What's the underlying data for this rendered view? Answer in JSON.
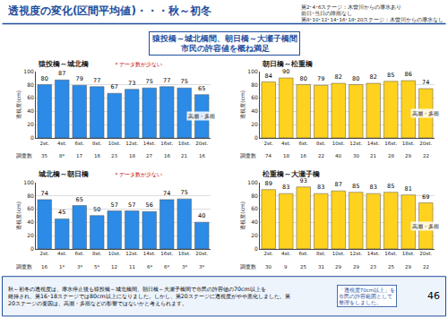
{
  "title": "透視度の変化(区間平均値)・・・秋～初冬",
  "notes": [
    "第2･4･6ステージ：木曽川からの導水あり",
    "前日･当日の降雨なし",
    "第8･10･12･14･16･18･20ステージ：木曽川からの導水なし"
  ],
  "subtitle": [
    "猿投橋～城北橋間、朝日橋～大瀬子橋間",
    "市民の許容値を概ね満足"
  ],
  "count_label": "調査数",
  "footer": [
    "秋～初冬の透視度は、導水停止後も猿投橋～城北橋間、朝日橋～大瀬子橋間で市民の許容値の70cm以上を",
    "維持され、第16･18ステージでは80cm以上になりました。しかし、第20ステージに透視度がやや悪化しました。第",
    "20ステージの要因は、高潮・多雨などの影響ではないかと考えられます。"
  ],
  "callout": [
    "「透視度70cm以上」を",
    "市民の許容範囲として",
    "整理をしました。"
  ],
  "page": "46",
  "chart_data": [
    {
      "type": "bar",
      "title": "猿投橋～城北橋",
      "note": "＊データ数が少ない",
      "y_label": "透視度(cm)",
      "categories": [
        "2st.",
        "4st.",
        "6st.",
        "8st.",
        "10st.",
        "12st.",
        "14st.",
        "16st.",
        "18st.",
        "20st."
      ],
      "values": [
        80,
        87,
        79,
        77,
        67,
        73,
        75,
        77,
        75,
        65
      ],
      "counts": [
        "35",
        "8*",
        "17",
        "16",
        "23",
        "18",
        "27",
        "16",
        "21",
        "16"
      ],
      "annotations": [
        {
          "text": "高潮・多雨",
          "category": "20st."
        }
      ],
      "color": "#2b8be6",
      "ylim": [
        0,
        100
      ],
      "yticks": [
        0,
        20,
        40,
        60,
        80,
        100
      ],
      "grid": true,
      "data_labels": true
    },
    {
      "type": "bar",
      "title": "朝日橋～松重橋",
      "y_label": "透視度(cm)",
      "categories": [
        "2st.",
        "4st.",
        "6st.",
        "8st.",
        "10st.",
        "12st.",
        "14st.",
        "16st.",
        "18st.",
        "20st."
      ],
      "values": [
        84,
        90,
        80,
        79,
        82,
        80,
        82,
        85,
        86,
        74
      ],
      "counts": [
        "74",
        "18",
        "16",
        "22",
        "40",
        "30",
        "21",
        "28",
        "29",
        "22"
      ],
      "annotations": [
        {
          "text": "高潮・多雨",
          "category": "20st."
        }
      ],
      "color": "#ffd21f",
      "ylim": [
        0,
        100
      ],
      "yticks": [
        0,
        20,
        40,
        60,
        80,
        100
      ],
      "grid": true,
      "data_labels": true
    },
    {
      "type": "bar",
      "title": "城北橋～朝日橋",
      "note": "＊データ数が少ない",
      "y_label": "透視度(cm)",
      "categories": [
        "2st.",
        "4st.",
        "6st.",
        "8st.",
        "10st.",
        "12st.",
        "14st.",
        "16st.",
        "18st.",
        "20st."
      ],
      "values": [
        74,
        45,
        65,
        50,
        57,
        57,
        56,
        74,
        75,
        40
      ],
      "counts": [
        "16",
        "1*",
        "3*",
        "5*",
        "12",
        "11",
        "6*",
        "6*",
        "3*",
        "3*"
      ],
      "color": "#2b8be6",
      "ylim": [
        0,
        100
      ],
      "yticks": [
        0,
        20,
        40,
        60,
        80,
        100
      ],
      "grid": true,
      "data_labels": true
    },
    {
      "type": "bar",
      "title": "松重橋～大瀬子橋",
      "y_label": "透視度(cm)",
      "categories": [
        "2st.",
        "4st.",
        "6st.",
        "8st.",
        "10st.",
        "12st.",
        "14st.",
        "16st.",
        "18st.",
        "20st."
      ],
      "values": [
        89,
        83,
        93,
        83,
        87,
        85,
        83,
        85,
        81,
        69
      ],
      "counts": [
        "30",
        "9",
        "25",
        "31",
        "29",
        "29",
        "23",
        "25",
        "29",
        "22"
      ],
      "annotations": [
        {
          "text": "高潮・多雨",
          "category": "20st."
        }
      ],
      "color": "#ffd21f",
      "ylim": [
        0,
        100
      ],
      "yticks": [
        0,
        20,
        40,
        60,
        80,
        100
      ],
      "grid": true,
      "data_labels": true
    }
  ]
}
